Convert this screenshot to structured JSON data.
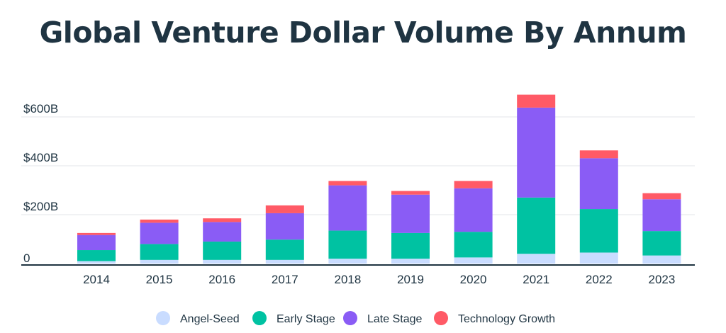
{
  "chart_data": {
    "type": "bar",
    "stacked": true,
    "title": "Global Venture Dollar Volume By Annum",
    "categories": [
      "2014",
      "2015",
      "2016",
      "2017",
      "2018",
      "2019",
      "2020",
      "2021",
      "2022",
      "2023"
    ],
    "series": [
      {
        "name": "Angel-Seed",
        "color": "#c9dcff",
        "values": [
          10,
          15,
          15,
          15,
          20,
          20,
          25,
          40,
          45,
          33
        ]
      },
      {
        "name": "Early Stage",
        "color": "#00c2a2",
        "values": [
          45,
          65,
          75,
          83,
          115,
          105,
          105,
          230,
          178,
          100
        ]
      },
      {
        "name": "Late Stage",
        "color": "#8a5cf5",
        "values": [
          62,
          87,
          80,
          108,
          185,
          157,
          178,
          368,
          208,
          130
        ]
      },
      {
        "name": "Technology Growth",
        "color": "#ff5a66",
        "values": [
          8,
          13,
          15,
          32,
          18,
          15,
          30,
          53,
          32,
          25
        ]
      }
    ],
    "yticks": [
      {
        "value": 0,
        "label": "0"
      },
      {
        "value": 200,
        "label": "$200B"
      },
      {
        "value": 400,
        "label": "$400B"
      },
      {
        "value": 600,
        "label": "$600B"
      }
    ],
    "ylim": [
      0,
      700
    ],
    "xlabel": "",
    "ylabel": "",
    "grid": true,
    "legend_position": "bottom-center"
  }
}
